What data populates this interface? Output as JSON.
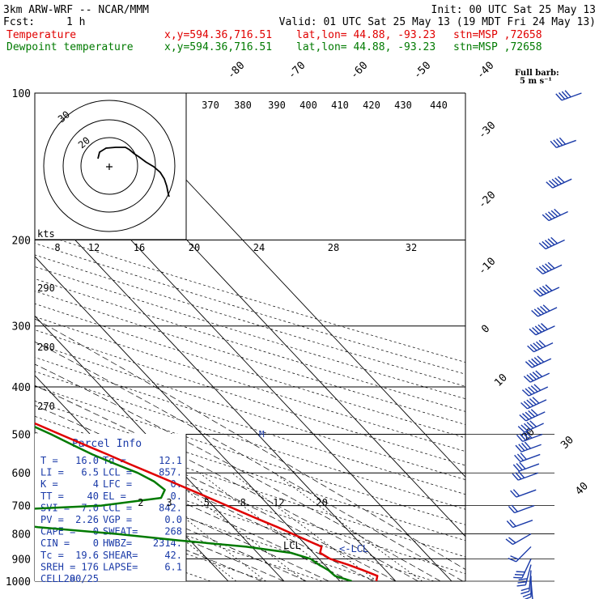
{
  "header": {
    "model": "3km ARW-WRF -- NCAR/MMM",
    "init": "Init: 00 UTC Sat 25 May 13",
    "fcst_label": "Fcst:",
    "fcst_value": "1 h",
    "valid": "Valid: 01 UTC Sat 25 May 13 (19 MDT Fri 24 May 13)"
  },
  "legend": {
    "temperature": {
      "name": "Temperature",
      "xy": "x,y=594.36,716.51",
      "latlon": "lat,lon= 44.88, -93.23",
      "stn": "stn=MSP ,72658",
      "color": "#e00000"
    },
    "dewpoint": {
      "name": "Dewpoint temperature",
      "xy": "x,y=594.36,716.51",
      "latlon": "lat,lon= 44.88, -93.23",
      "stn": "stn=MSP ,72658",
      "color": "#007a00"
    }
  },
  "wind_key": {
    "line1": "Full barb:",
    "line2": "5 m s⁻¹"
  },
  "hodograph": {
    "kts_label": "kts",
    "ring_labels": [
      "30",
      "20"
    ],
    "ticks": [
      "8",
      "12",
      "16",
      "20",
      "24",
      "28",
      "32"
    ]
  },
  "parcel_info": {
    "title": "Parcel Info",
    "rows": [
      [
        "T  =",
        "16.0",
        "Td =",
        "12.1"
      ],
      [
        "LI =",
        "6.5",
        "LCL =",
        "857."
      ],
      [
        "K  =",
        "4",
        "LFC =",
        "0."
      ],
      [
        "TT =",
        "40",
        "EL  =",
        "0."
      ],
      [
        "SVI =",
        "7.0",
        "CCL =",
        "842."
      ],
      [
        "PV =",
        "2.26",
        "VGP =",
        "0.0"
      ],
      [
        "CAPE =",
        "0",
        "SWEAT=",
        "268"
      ],
      [
        "CIN  =",
        "0",
        "HWBZ=",
        "2314."
      ],
      [
        "Tc  =",
        "19.6",
        "SHEAR=",
        "42."
      ],
      [
        "SREH =",
        "176",
        "LAPSE=",
        "6.1"
      ],
      [
        "CELL =",
        "280/25",
        "",
        ""
      ]
    ]
  },
  "annotations": {
    "lcl": "LCL",
    "ccl": "CCL",
    "lcl_arrow": "<-LCL",
    "m_mark": "M"
  },
  "chart_data": {
    "type": "line",
    "title": "",
    "xlabel": "",
    "ylabel": "",
    "pressure_levels": [
      100,
      200,
      300,
      400,
      500,
      600,
      700,
      800,
      900,
      1000
    ],
    "pressure_range": [
      1000,
      100
    ],
    "pressure_scale": "log",
    "isotherm_labels": [
      "-80",
      "-70",
      "-60",
      "-50",
      "-40",
      "-30",
      "-20",
      "-10",
      "0",
      "10",
      "20",
      "30",
      "40"
    ],
    "isentrope_labels_top": [
      "370",
      "380",
      "390",
      "400",
      "410",
      "420",
      "430",
      "440"
    ],
    "isentrope_labels_left": [
      "290",
      "280",
      "270"
    ],
    "mixing_ratio_labels": [
      "2",
      "3",
      "5",
      "8",
      "12",
      "20"
    ],
    "grid": true,
    "series": [
      {
        "name": "Temperature",
        "color": "#e00000",
        "p": [
          1000,
          975,
          950,
          925,
          900,
          875,
          850,
          825,
          800,
          775,
          750,
          725,
          700,
          675,
          650,
          625,
          600,
          575,
          550,
          525,
          500,
          475,
          450,
          425,
          400,
          375,
          350,
          325,
          300,
          275,
          250,
          225,
          210,
          200,
          190,
          175,
          150,
          125,
          100
        ],
        "t": [
          16.5,
          17.6,
          16.0,
          14.2,
          12.0,
          11.2,
          12.5,
          11.0,
          9.5,
          7.9,
          6.1,
          4.3,
          2.5,
          0.6,
          -1.4,
          -3.5,
          -5.7,
          -8.0,
          -10.3,
          -12.8,
          -15.4,
          -18.1,
          -20.9,
          -23.9,
          -27.1,
          -30.6,
          -34.3,
          -38.3,
          -42.7,
          -47.2,
          -51.9,
          -56.5,
          -59.3,
          -60.5,
          -60.7,
          -61.0,
          -62.5,
          -65.0,
          -67.5
        ]
      },
      {
        "name": "Dewpoint temperature",
        "color": "#007a00",
        "p": [
          1000,
          975,
          950,
          925,
          900,
          875,
          850,
          825,
          800,
          775,
          750,
          725,
          700,
          675,
          650,
          625,
          600,
          575,
          550,
          525,
          500,
          475,
          450,
          425,
          400,
          375,
          350,
          325,
          300,
          275,
          250,
          225,
          210,
          200,
          190,
          175,
          150,
          125,
          100
        ],
        "t": [
          12.1,
          10.0,
          9.8,
          9.0,
          8.5,
          6.0,
          -1.0,
          -12.0,
          -22.0,
          -35.0,
          -45.0,
          -50.0,
          -20.0,
          -8.0,
          -6.0,
          -6.5,
          -8.0,
          -10.5,
          -13.0,
          -15.0,
          -17.0,
          -19.5,
          -22.5,
          -26.0,
          -30.0,
          -34.5,
          -39.0,
          -43.5,
          -48.5,
          -54.0,
          -59.5,
          -65.0,
          -69.0,
          -71.0,
          -73.0,
          -75.0,
          -76.0,
          -77.0,
          -78.0
        ]
      }
    ],
    "wind_profile": {
      "p": [
        100,
        125,
        150,
        175,
        200,
        225,
        250,
        275,
        300,
        325,
        350,
        375,
        400,
        425,
        450,
        475,
        500,
        525,
        550,
        575,
        600,
        650,
        700,
        750,
        800,
        850,
        900,
        925,
        950,
        975,
        1000
      ],
      "direction_deg": [
        250,
        250,
        245,
        245,
        245,
        245,
        245,
        245,
        245,
        245,
        245,
        245,
        245,
        245,
        245,
        245,
        250,
        250,
        250,
        250,
        250,
        250,
        250,
        250,
        240,
        225,
        205,
        195,
        185,
        180,
        175
      ],
      "speed_ms": [
        20,
        22,
        25,
        25,
        25,
        25,
        25,
        25,
        25,
        25,
        25,
        25,
        25,
        25,
        25,
        25,
        20,
        20,
        15,
        15,
        15,
        10,
        10,
        10,
        10,
        10,
        15,
        15,
        10,
        10,
        5
      ]
    }
  }
}
